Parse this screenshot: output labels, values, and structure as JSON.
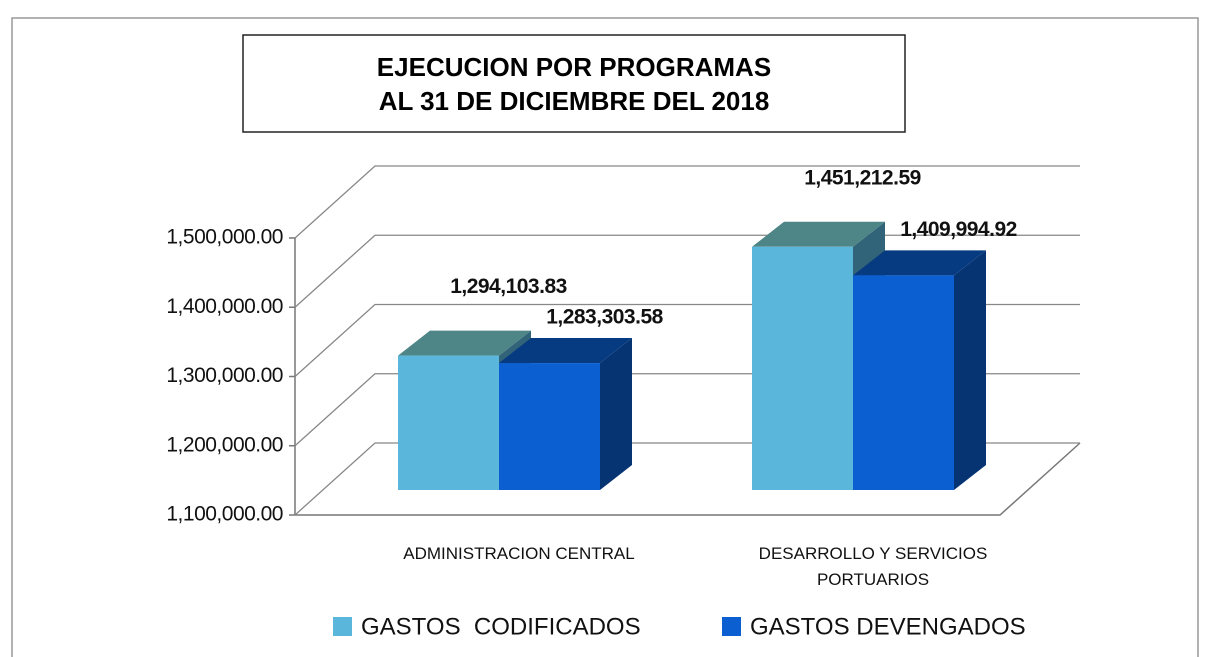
{
  "chart_data": {
    "type": "bar3d",
    "title": "EJECUCION POR PROGRAMAS",
    "subtitle": "AL 31 DE DICIEMBRE DEL 2018",
    "categories": [
      "ADMINISTRACION CENTRAL",
      "DESARROLLO Y SERVICIOS PORTUARIOS"
    ],
    "series": [
      {
        "name": "GASTOS  CODIFICADOS",
        "color": "#5bb6dc",
        "values": [
          1294103.83,
          1451212.59
        ],
        "value_labels": [
          "1,294,103.83",
          "1,451,212.59"
        ]
      },
      {
        "name": "GASTOS DEVENGADOS",
        "color": "#0b5fd0",
        "values": [
          1283303.58,
          1409994.92
        ],
        "value_labels": [
          "1,283,303.58",
          "1,409,994.92"
        ]
      }
    ],
    "ylim": [
      1100000,
      1500000
    ],
    "yticks": [
      {
        "value": 1100000,
        "label": "1,100,000.00"
      },
      {
        "value": 1200000,
        "label": "1,200,000.00"
      },
      {
        "value": 1300000,
        "label": "1,300,000.00"
      },
      {
        "value": 1400000,
        "label": "1,400,000.00"
      },
      {
        "value": 1500000,
        "label": "1,500,000.00"
      }
    ],
    "grid": true,
    "legend": "bottom"
  }
}
